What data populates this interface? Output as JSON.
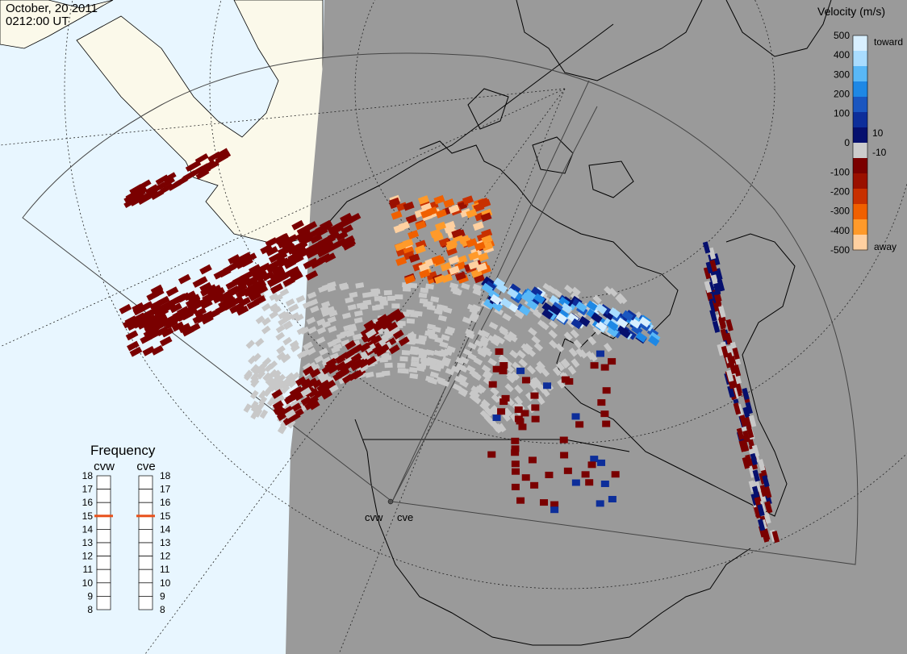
{
  "header": {
    "date": "October, 20 2011",
    "time": "0212:00 UT"
  },
  "colorbar": {
    "title": "Velocity (m/s)",
    "ticks": [
      "500",
      "400",
      "300",
      "200",
      "100",
      "10",
      "0",
      "-10",
      "-100",
      "-200",
      "-300",
      "-400",
      "-500"
    ],
    "toward_label": "toward",
    "away_label": "away"
  },
  "frequency": {
    "title": "Frequency",
    "radars": [
      {
        "name": "cvw",
        "value": 15
      },
      {
        "name": "cve",
        "value": 15
      }
    ],
    "ticks": [
      "18",
      "17",
      "16",
      "15",
      "14",
      "13",
      "12",
      "11",
      "10",
      "9",
      "8"
    ]
  },
  "map": {
    "radar_sites": [
      "cvw",
      "cve"
    ],
    "colors": {
      "background": "#e8f6ff",
      "land": "#fbf9ea",
      "night": "#9a9a9a",
      "ground_scatter": "#c8c8c8"
    }
  }
}
